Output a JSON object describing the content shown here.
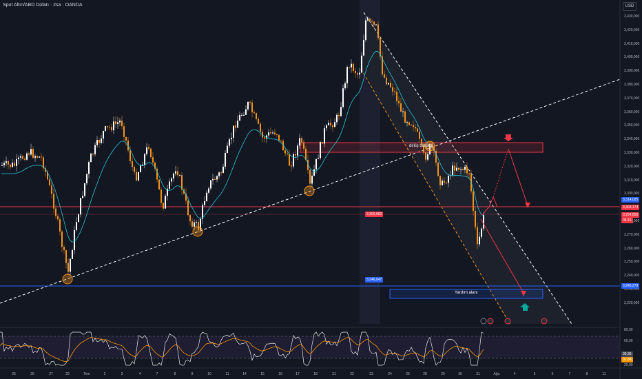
{
  "header": {
    "title": "Spot Altın/ABD Doları · 2sa · OANDA",
    "currency": "USD"
  },
  "price_axis": [
    "3,430,000",
    "3,420,000",
    "3,410,000",
    "3,400,000",
    "3,390,000",
    "3,380,000",
    "3,370,000",
    "3,360,000",
    "3,350,000",
    "3,340,000",
    "3,330,000",
    "3,320,000",
    "3,310,000",
    "3,300,000",
    "3,290,000",
    "3,280,000",
    "3,270,000",
    "3,260,000",
    "3,250,000",
    "3,240,000",
    "3,230,000",
    "3,220,000"
  ],
  "price_tags": {
    "resistance": "3,303,174",
    "last": "3,294,850",
    "last_sub": "05:15",
    "support": "3,246,279",
    "midline": "3,300,960",
    "support_mid": "3,246,047",
    "upper": "3,314,025"
  },
  "zones": {
    "sell": "diriliş bölgesi",
    "support": "Yardım alanı"
  },
  "rsi_axis": [
    "80,00",
    "60,00",
    "20,00"
  ],
  "rsi_values": [
    "39,35",
    "37,84"
  ],
  "time_axis": [
    "25",
    "26",
    "27",
    "29",
    "Tem",
    "2",
    "3",
    "4",
    "7",
    "8",
    "9",
    "10",
    "11",
    "14",
    "15",
    "16",
    "17",
    "18",
    "21",
    "22",
    "23",
    "24",
    "25",
    "28",
    "29",
    "30",
    "31",
    "Ağu",
    "4",
    "5",
    "6",
    "7",
    "8",
    "11"
  ],
  "colors": {
    "up": "#ffffff",
    "down": "#f7931a",
    "resistance": "#f23645",
    "support": "#2962ff",
    "rsi": "#e8e8e8",
    "rsi_ma": "#ff9800"
  }
}
